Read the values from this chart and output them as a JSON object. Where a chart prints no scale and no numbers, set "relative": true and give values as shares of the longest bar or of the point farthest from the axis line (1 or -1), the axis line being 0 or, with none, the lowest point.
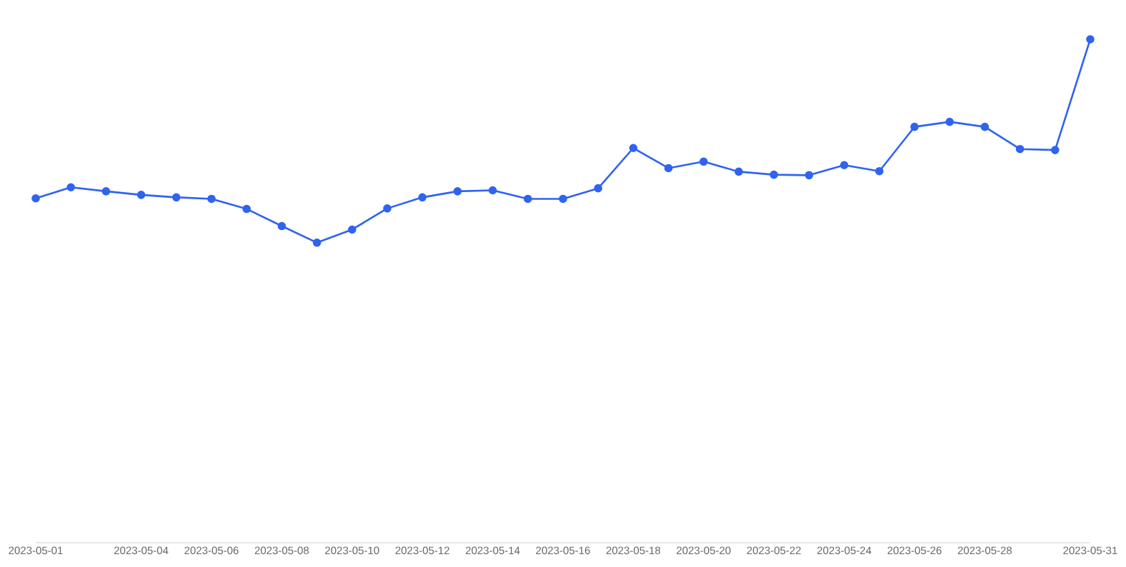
{
  "chart_data": {
    "type": "line",
    "relative": true,
    "marker": "circle",
    "color": "#2f63f0",
    "tick_labels": "x",
    "x": [
      "2023-05-01",
      "2023-05-02",
      "2023-05-03",
      "2023-05-04",
      "2023-05-05",
      "2023-05-06",
      "2023-05-07",
      "2023-05-08",
      "2023-05-09",
      "2023-05-10",
      "2023-05-11",
      "2023-05-12",
      "2023-05-13",
      "2023-05-14",
      "2023-05-15",
      "2023-05-16",
      "2023-05-17",
      "2023-05-18",
      "2023-05-19",
      "2023-05-20",
      "2023-05-21",
      "2023-05-22",
      "2023-05-23",
      "2023-05-24",
      "2023-05-25",
      "2023-05-26",
      "2023-05-27",
      "2023-05-28",
      "2023-05-29",
      "2023-05-30",
      "2023-05-31"
    ],
    "values": [
      0.684,
      0.706,
      0.698,
      0.691,
      0.686,
      0.683,
      0.663,
      0.629,
      0.596,
      0.622,
      0.664,
      0.686,
      0.698,
      0.7,
      0.683,
      0.683,
      0.704,
      0.784,
      0.744,
      0.757,
      0.737,
      0.731,
      0.73,
      0.75,
      0.738,
      0.826,
      0.836,
      0.826,
      0.782,
      0.78,
      1
    ],
    "xlim": [
      "2023-05-01",
      "2023-05-31"
    ],
    "xticks": [
      "2023-05-01",
      "2023-05-04",
      "2023-05-06",
      "2023-05-08",
      "2023-05-10",
      "2023-05-12",
      "2023-05-14",
      "2023-05-16",
      "2023-05-18",
      "2023-05-20",
      "2023-05-22",
      "2023-05-24",
      "2023-05-26",
      "2023-05-28",
      "2023-05-31"
    ]
  }
}
